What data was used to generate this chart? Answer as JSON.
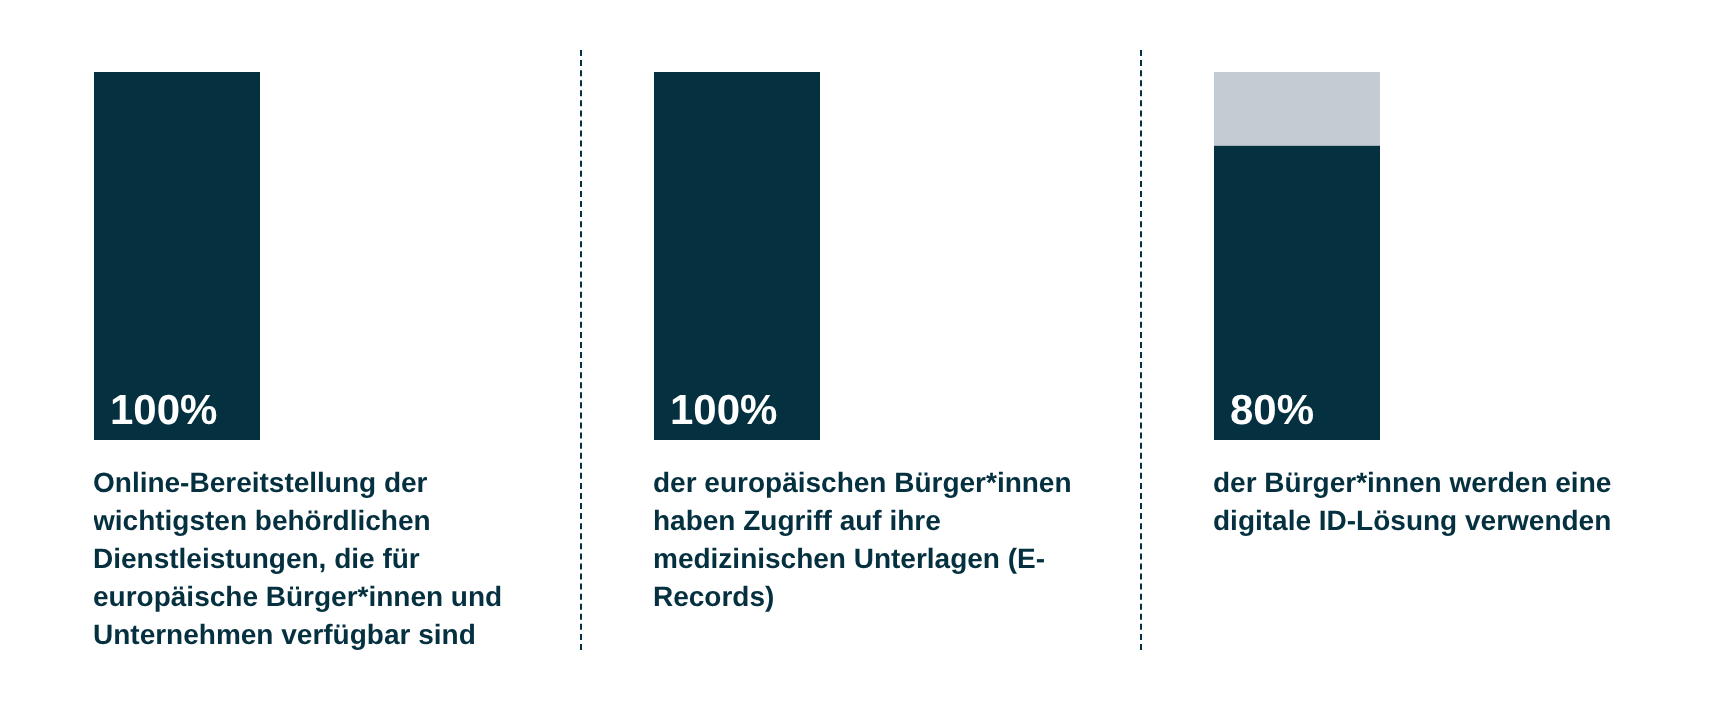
{
  "chart_data": {
    "type": "bar",
    "stacked": true,
    "categories": [
      "Online-Bereitstellung der wichtigsten behördlichen Dienstleistungen, die für europäische Bürger*innen und Unternehmen verfügbar sind",
      "der europäischen Bürger*innen haben Zugriff auf ihre medizinischen Unterlagen (E-Records)",
      "der Bürger*innen werden eine digitale ID-Lösung verwenden"
    ],
    "series": [
      {
        "color": "#04303f",
        "values": [
          100,
          100,
          80
        ],
        "value_labels": [
          "100%",
          "100%",
          "80%"
        ]
      },
      {
        "color": "#c2ccd2",
        "values": [
          0,
          0,
          20
        ]
      }
    ],
    "ylim": [
      0,
      100
    ],
    "tick_labels": "x"
  }
}
